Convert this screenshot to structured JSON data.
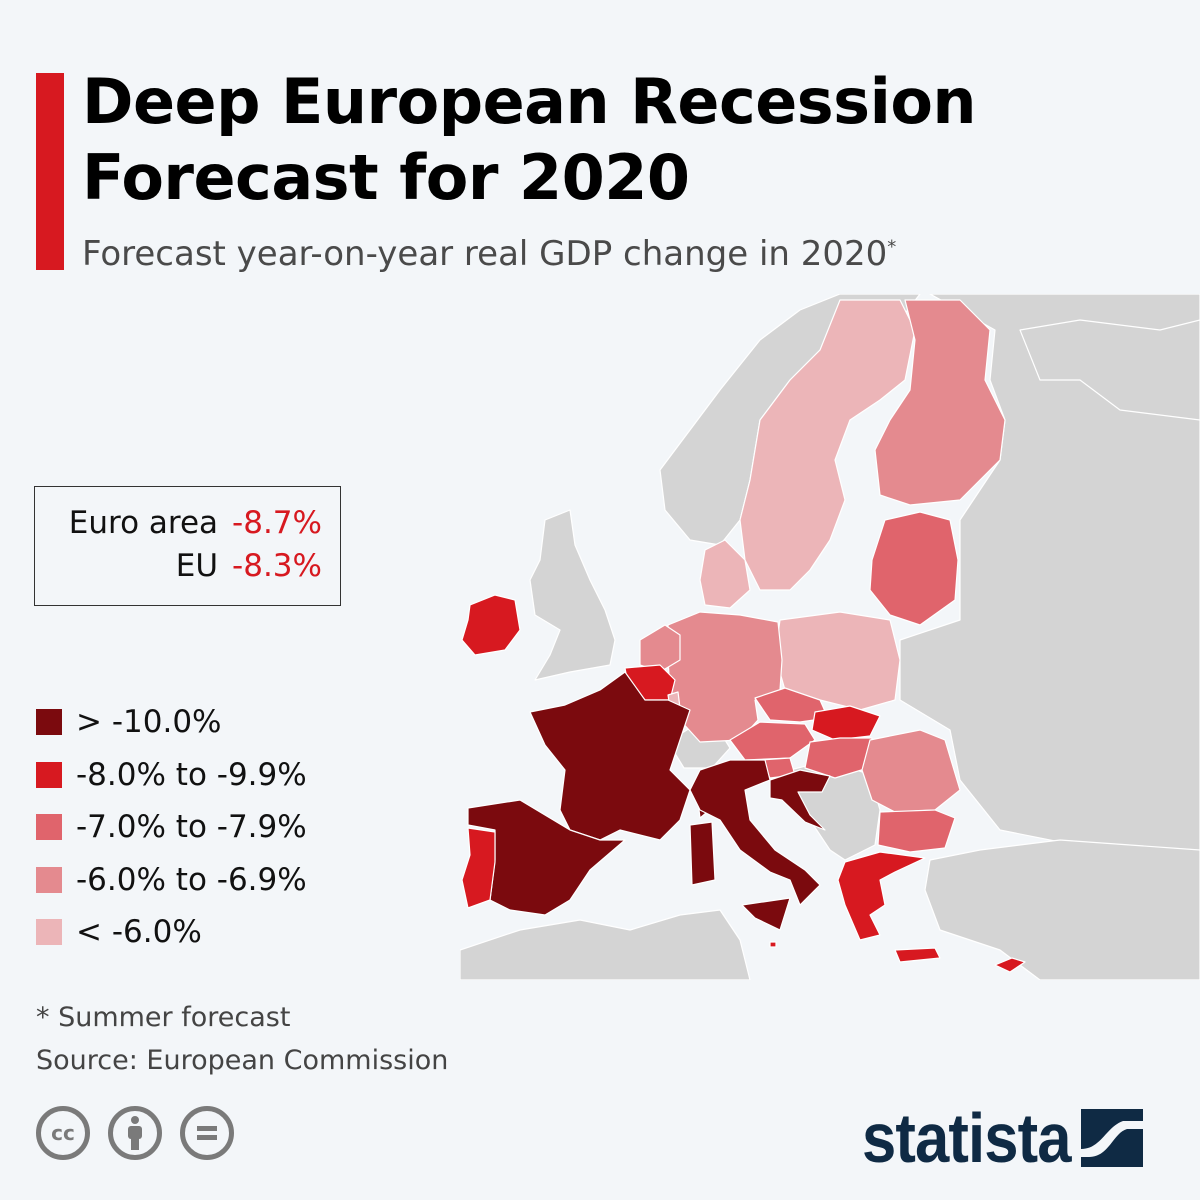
{
  "header": {
    "title_line1": "Deep European Recession",
    "title_line2": "Forecast for 2020",
    "subtitle": "Forecast year-on-year real GDP change in 2020",
    "subtitle_marker": "*"
  },
  "summary": {
    "rows": [
      {
        "label": "Euro area",
        "value": "-8.7%"
      },
      {
        "label": "EU",
        "value": "-8.3%"
      }
    ]
  },
  "legend": {
    "items": [
      {
        "label": "> -10.0%",
        "color": "#7b0a0e"
      },
      {
        "label": "-8.0% to -9.9%",
        "color": "#d71920"
      },
      {
        "label": "-7.0% to -7.9%",
        "color": "#e0646c"
      },
      {
        "label": "-6.0% to -6.9%",
        "color": "#e48a8f"
      },
      {
        "label": "< -6.0%",
        "color": "#ecb5b8"
      }
    ]
  },
  "map": {
    "no_data_color": "#d4d4d4",
    "regions": {
      "france": 0,
      "spain": 0,
      "italy": 0,
      "croatia": 0,
      "ireland": 1,
      "belgium": 1,
      "portugal": 1,
      "slovakia": 1,
      "greece": 1,
      "cyprus": 1,
      "malta": 1,
      "baltics": 2,
      "czechia": 2,
      "austria": 2,
      "hungary": 2,
      "slovenia": 2,
      "bulgaria": 2,
      "finland": 3,
      "germany": 3,
      "netherlands": 3,
      "romania": 3,
      "sweden": 4,
      "poland": 4,
      "denmark": 4,
      "luxembourg": 4
    }
  },
  "footer": {
    "note": "* Summer forecast",
    "source": "Source: European Commission",
    "license_icons": [
      "cc-icon",
      "attribution-icon",
      "no-derivatives-icon"
    ],
    "cc_label": "cc",
    "brand": "statista"
  }
}
